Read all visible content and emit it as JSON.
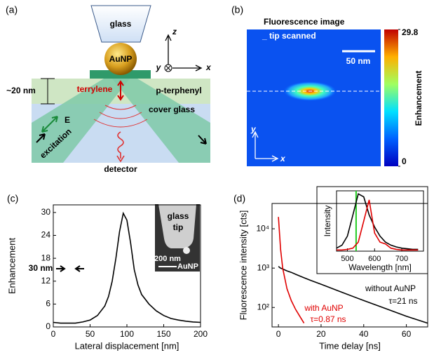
{
  "diagram": {
    "label": "(a)",
    "glass": "glass",
    "particle": "AuNP",
    "axis_z": "z",
    "axis_y": "y",
    "axis_x": "x",
    "thickness": "~20 nm",
    "molecule": "terrylene",
    "matrix": "p-terphenyl",
    "substrate": "cover glass",
    "field": "E",
    "beam": "excitation",
    "detector": "detector"
  },
  "image": {
    "label": "(b)",
    "title": "Fluorescence image",
    "subtitle": "_ tip scanned",
    "scale_bar": "50 nm",
    "axis_y": "y",
    "axis_x": "x",
    "colorbar_label": "Enhancement",
    "colorbar_ticks": [
      0,
      29.8
    ]
  },
  "chart_data": [
    {
      "type": "line",
      "panel_label": "(c)",
      "xlabel": "Lateral displacement [nm]",
      "ylabel": "Enhancement",
      "x": [
        0,
        10,
        20,
        30,
        40,
        50,
        60,
        70,
        75,
        80,
        85,
        90,
        95,
        100,
        105,
        110,
        115,
        120,
        130,
        140,
        150,
        160,
        170,
        180,
        190,
        200
      ],
      "values": [
        1.2,
        1,
        1,
        1,
        1.3,
        1.8,
        3,
        5.5,
        8,
        12,
        18,
        25,
        29.8,
        28,
        22,
        15,
        11,
        8.5,
        6,
        4.2,
        3,
        2.2,
        1.8,
        1.5,
        1.3,
        1.2
      ],
      "color": "#000000",
      "xlim": [
        0,
        200
      ],
      "ylim": [
        0,
        32
      ],
      "xticks": [
        0,
        50,
        100,
        150,
        200
      ],
      "yticks": [
        0,
        6,
        12,
        18,
        24,
        30
      ],
      "annotations": [
        "30 nm"
      ],
      "inset_texts": {
        "glass": "glass",
        "tip": "tip",
        "scale": "200 nm",
        "particle": "AuNP"
      }
    },
    {
      "type": "line",
      "panel_label": "(d)",
      "xlabel": "Time delay [ns]",
      "ylabel": "Fluorescence intensity [cts]",
      "log_scale": true,
      "x": [
        0,
        1,
        2,
        4,
        6,
        8,
        10,
        12,
        15,
        20,
        30,
        40,
        50,
        60,
        70
      ],
      "series": [
        {
          "name": "without AuNP",
          "color": "#000000",
          "values": [
            1100,
            1000,
            950,
            850,
            780,
            700,
            630,
            570,
            490,
            390,
            240,
            150,
            95,
            60,
            40
          ]
        },
        {
          "name": "with AuNP",
          "color": "#e00000",
          "values": [
            20000,
            3000,
            1000,
            300,
            150,
            90,
            60,
            40,
            null,
            null,
            null,
            null,
            null,
            null,
            null
          ]
        }
      ],
      "xlim": [
        -3,
        70
      ],
      "ylim": [
        32,
        44000
      ],
      "xticks": [
        0,
        20,
        40,
        60
      ],
      "yticks": [
        {
          "value": 100,
          "label": "10²"
        },
        {
          "value": 1000,
          "label": "10³"
        },
        {
          "value": 10000,
          "label": "10⁴"
        }
      ],
      "annotations": [
        "τ=21 ns",
        "τ=0.87 ns"
      ]
    },
    {
      "type": "line",
      "xlabel": "Wavelength [nm]",
      "ylabel": "Intensity",
      "x": [
        460,
        480,
        500,
        520,
        540,
        560,
        580,
        600,
        620,
        640,
        660,
        680,
        700,
        720,
        740,
        760
      ],
      "series": [
        {
          "color": "#000000",
          "values": [
            0.05,
            0.1,
            0.25,
            0.6,
            0.95,
            0.9,
            0.6,
            0.4,
            0.25,
            0.15,
            0.1,
            0.07,
            0.05,
            0.04,
            0.03,
            0.03
          ]
        },
        {
          "color": "#e00000",
          "values": [
            0.02,
            0.02,
            0.03,
            0.05,
            0.15,
            0.5,
            0.85,
            0.3,
            0.15,
            0.12,
            0.05,
            0.03,
            0.02,
            0.02,
            0.02,
            0.02
          ]
        }
      ],
      "vlines": [
        {
          "x": 532,
          "color": "#22cc22"
        }
      ],
      "xlim": [
        460,
        780
      ],
      "ylim": [
        0,
        1
      ],
      "xticks": [
        500,
        600,
        700
      ]
    }
  ]
}
